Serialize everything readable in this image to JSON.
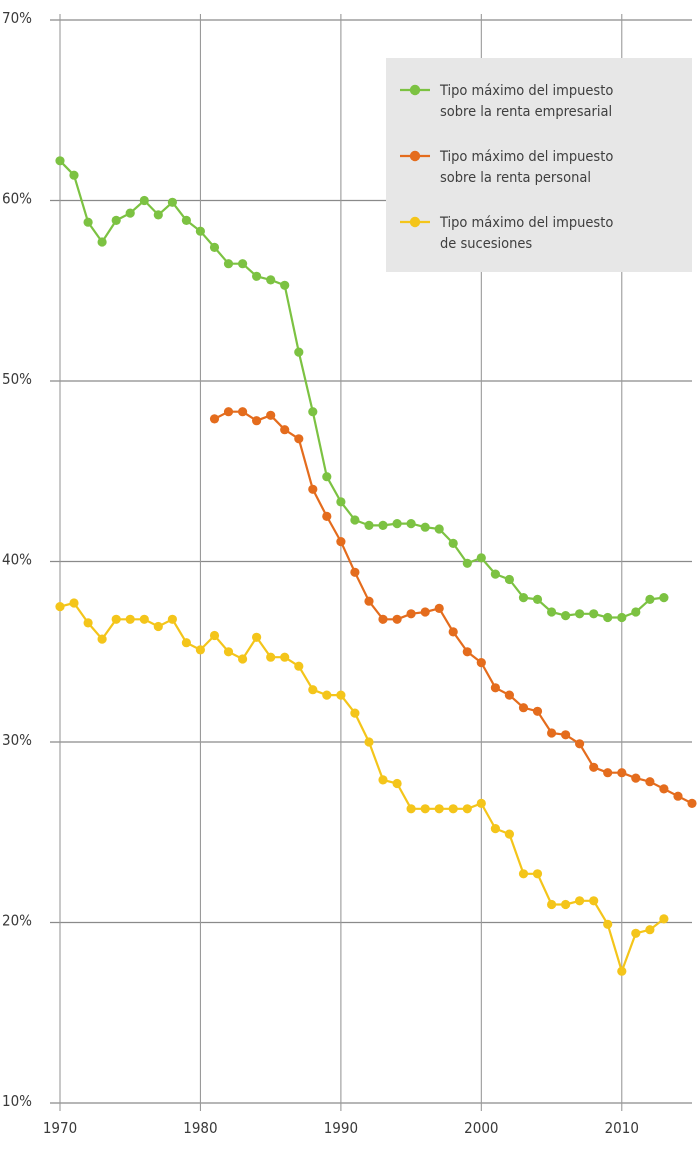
{
  "chart_data": {
    "type": "line",
    "title": "",
    "xlabel": "",
    "ylabel": "",
    "xlim": [
      1970,
      2015
    ],
    "ylim": [
      10,
      70
    ],
    "x_ticks": [
      {
        "value": 1970,
        "label": "1970"
      },
      {
        "value": 1980,
        "label": "1980"
      },
      {
        "value": 1990,
        "label": "1990"
      },
      {
        "value": 2000,
        "label": "2000"
      },
      {
        "value": 2010,
        "label": "2010"
      }
    ],
    "y_ticks": [
      {
        "value": 10,
        "label": "10%"
      },
      {
        "value": 20,
        "label": "20%"
      },
      {
        "value": 30,
        "label": "30%"
      },
      {
        "value": 40,
        "label": "40%"
      },
      {
        "value": 50,
        "label": "50%"
      },
      {
        "value": 60,
        "label": "60%"
      },
      {
        "value": 70,
        "label": "70%"
      }
    ],
    "grid": "both",
    "legend_position": "top-right",
    "series": [
      {
        "name": "Tipo máximo del impuesto sobre la renta empresarial",
        "legend_lines": [
          "Tipo máximo del impuesto",
          "sobre la renta empresarial"
        ],
        "color": "#7cc242",
        "points": [
          [
            1970,
            62.2
          ],
          [
            1971,
            61.4
          ],
          [
            1972,
            58.8
          ],
          [
            1973,
            57.7
          ],
          [
            1974,
            58.9
          ],
          [
            1975,
            59.3
          ],
          [
            1976,
            60.0
          ],
          [
            1977,
            59.2
          ],
          [
            1978,
            59.9
          ],
          [
            1979,
            58.9
          ],
          [
            1980,
            58.3
          ],
          [
            1981,
            57.4
          ],
          [
            1982,
            56.5
          ],
          [
            1983,
            56.5
          ],
          [
            1984,
            55.8
          ],
          [
            1985,
            55.6
          ],
          [
            1986,
            55.3
          ],
          [
            1987,
            51.6
          ],
          [
            1988,
            48.3
          ],
          [
            1989,
            44.7
          ],
          [
            1990,
            43.3
          ],
          [
            1991,
            42.3
          ],
          [
            1992,
            42.0
          ],
          [
            1993,
            42.0
          ],
          [
            1994,
            42.1
          ],
          [
            1995,
            42.1
          ],
          [
            1996,
            41.9
          ],
          [
            1997,
            41.8
          ],
          [
            1998,
            41.0
          ],
          [
            1999,
            39.9
          ],
          [
            2000,
            40.2
          ],
          [
            2001,
            39.3
          ],
          [
            2002,
            39.0
          ],
          [
            2003,
            38.0
          ],
          [
            2004,
            37.9
          ],
          [
            2005,
            37.2
          ],
          [
            2006,
            37.0
          ],
          [
            2007,
            37.1
          ],
          [
            2008,
            37.1
          ],
          [
            2009,
            36.9
          ],
          [
            2010,
            36.9
          ],
          [
            2011,
            37.2
          ],
          [
            2012,
            37.9
          ],
          [
            2013,
            38.0
          ]
        ]
      },
      {
        "name": "Tipo máximo del impuesto sobre la renta personal",
        "legend_lines": [
          "Tipo máximo del impuesto",
          "sobre la renta personal"
        ],
        "color": "#e46c1d",
        "points": [
          [
            1981,
            47.9
          ],
          [
            1982,
            48.3
          ],
          [
            1983,
            48.3
          ],
          [
            1984,
            47.8
          ],
          [
            1985,
            48.1
          ],
          [
            1986,
            47.3
          ],
          [
            1987,
            46.8
          ],
          [
            1988,
            44.0
          ],
          [
            1989,
            42.5
          ],
          [
            1990,
            41.1
          ],
          [
            1991,
            39.4
          ],
          [
            1992,
            37.8
          ],
          [
            1993,
            36.8
          ],
          [
            1994,
            36.8
          ],
          [
            1995,
            37.1
          ],
          [
            1996,
            37.2
          ],
          [
            1997,
            37.4
          ],
          [
            1998,
            36.1
          ],
          [
            1999,
            35.0
          ],
          [
            2000,
            34.4
          ],
          [
            2001,
            33.0
          ],
          [
            2002,
            32.6
          ],
          [
            2003,
            31.9
          ],
          [
            2004,
            31.7
          ],
          [
            2005,
            30.5
          ],
          [
            2006,
            30.4
          ],
          [
            2007,
            29.9
          ],
          [
            2008,
            28.6
          ],
          [
            2009,
            28.3
          ],
          [
            2010,
            28.3
          ],
          [
            2011,
            28.0
          ],
          [
            2012,
            27.8
          ],
          [
            2013,
            27.4
          ],
          [
            2014,
            27.0
          ],
          [
            2015,
            26.6
          ]
        ]
      },
      {
        "name": "Tipo máximo del impuesto de sucesiones",
        "legend_lines": [
          "Tipo máximo del impuesto",
          "de sucesiones"
        ],
        "color": "#f4c51a",
        "points": [
          [
            1970,
            37.5
          ],
          [
            1971,
            37.7
          ],
          [
            1972,
            36.6
          ],
          [
            1973,
            35.7
          ],
          [
            1974,
            36.8
          ],
          [
            1975,
            36.8
          ],
          [
            1976,
            36.8
          ],
          [
            1977,
            36.4
          ],
          [
            1978,
            36.8
          ],
          [
            1979,
            35.5
          ],
          [
            1980,
            35.1
          ],
          [
            1981,
            35.9
          ],
          [
            1982,
            35.0
          ],
          [
            1983,
            34.6
          ],
          [
            1984,
            35.8
          ],
          [
            1985,
            34.7
          ],
          [
            1986,
            34.7
          ],
          [
            1987,
            34.2
          ],
          [
            1988,
            32.9
          ],
          [
            1989,
            32.6
          ],
          [
            1990,
            32.6
          ],
          [
            1991,
            31.6
          ],
          [
            1992,
            30.0
          ],
          [
            1993,
            27.9
          ],
          [
            1994,
            27.7
          ],
          [
            1995,
            26.3
          ],
          [
            1996,
            26.3
          ],
          [
            1997,
            26.3
          ],
          [
            1998,
            26.3
          ],
          [
            1999,
            26.3
          ],
          [
            2000,
            26.6
          ],
          [
            2001,
            25.2
          ],
          [
            2002,
            24.9
          ],
          [
            2003,
            22.7
          ],
          [
            2004,
            22.7
          ],
          [
            2005,
            21.0
          ],
          [
            2006,
            21.0
          ],
          [
            2007,
            21.2
          ],
          [
            2008,
            21.2
          ],
          [
            2009,
            19.9
          ],
          [
            2010,
            17.3
          ],
          [
            2011,
            19.4
          ],
          [
            2012,
            19.6
          ],
          [
            2013,
            20.2
          ]
        ]
      }
    ]
  }
}
